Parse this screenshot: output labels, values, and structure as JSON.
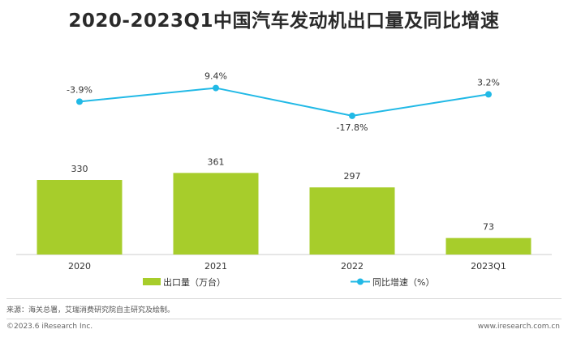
{
  "title": "2020-2023Q1中国汽车发动机出口量及同比增速",
  "chart_data": {
    "type": "bar",
    "categories": [
      "2020",
      "2021",
      "2022",
      "2023Q1"
    ],
    "series": [
      {
        "name": "出口量（万台）",
        "type": "bar",
        "values": [
          330,
          361,
          297,
          73
        ],
        "labels": [
          "330",
          "361",
          "297",
          "73"
        ],
        "color": "#a7cd2b"
      },
      {
        "name": "同比增速（%）",
        "type": "line",
        "values": [
          -3.9,
          9.4,
          -17.8,
          3.2
        ],
        "labels": [
          "-3.9%",
          "9.4%",
          "-17.8%",
          "3.2%"
        ],
        "color": "#21b9e6"
      }
    ],
    "legend_position": "bottom",
    "grid": false
  },
  "source": "来源：海关总署，艾瑞消费研究院自主研究及绘制。",
  "copyright": "©2023.6 iResearch Inc.",
  "website": "www.iresearch.com.cn"
}
